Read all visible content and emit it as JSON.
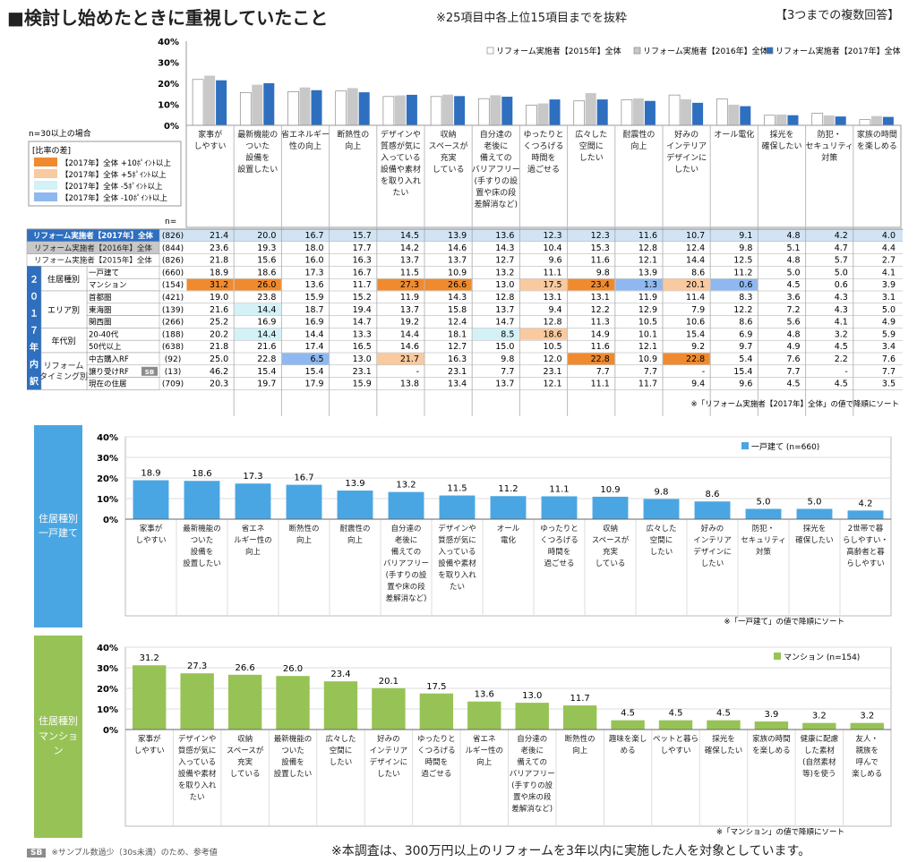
{
  "header": {
    "title": "■検討し始めたときに重視していたこと",
    "subtitle": "※25項目中各上位15項目までを抜粋",
    "answer_type": "【3つまでの複数回答】"
  },
  "colors": {
    "s2015": "#ffffff",
    "s2016": "#c8c8c8",
    "s2017": "#2e6fc0",
    "detached": "#4aa6e2",
    "mansion": "#97c356",
    "hl_plus10": "#ef8a2e",
    "hl_plus5": "#f9c9a0",
    "hl_minus5": "#d3f1f6",
    "hl_minus10": "#8fb8f0"
  },
  "note_n": "n=30以上の場合",
  "legend_box": {
    "title": "[比率の差]",
    "items": [
      {
        "label": "【2017年】全体 +10ﾎﾟｲﾝﾄ以上",
        "color": "#ef8a2e"
      },
      {
        "label": "【2017年】全体 +5ﾎﾟｲﾝﾄ以上",
        "color": "#f9c9a0"
      },
      {
        "label": "【2017年】全体 -5ﾎﾟｲﾝﾄ以上",
        "color": "#d3f1f6"
      },
      {
        "label": "【2017年】全体 -10ﾎﾟｲﾝﾄ以上",
        "color": "#8fb8f0"
      }
    ]
  },
  "table": {
    "n_header": "n=",
    "group_main": "２０１７年内訳",
    "rows": [
      {
        "group": "",
        "label": "リフォーム実施者【2017年】全体",
        "n": "(826)",
        "v": [
          "21.4",
          "20.0",
          "16.7",
          "15.7",
          "14.5",
          "13.9",
          "13.6",
          "12.3",
          "12.3",
          "11.6",
          "10.7",
          "9.1",
          "4.8",
          "4.2",
          "4.0"
        ],
        "hl": [
          "",
          "",
          "",
          "",
          "",
          "",
          "",
          "",
          "",
          "",
          "",
          "",
          "",
          "",
          ""
        ]
      },
      {
        "group": "",
        "label": "リフォーム実施者【2016年】全体",
        "n": "(844)",
        "v": [
          "23.6",
          "19.3",
          "18.0",
          "17.7",
          "14.2",
          "14.6",
          "14.3",
          "10.4",
          "15.3",
          "12.8",
          "12.4",
          "9.8",
          "5.1",
          "4.7",
          "4.4"
        ],
        "hl": [
          "",
          "",
          "",
          "",
          "",
          "",
          "",
          "",
          "",
          "",
          "",
          "",
          "",
          "",
          ""
        ]
      },
      {
        "group": "",
        "label": "リフォーム実施者【2015年】全体",
        "n": "(826)",
        "v": [
          "21.8",
          "15.6",
          "16.0",
          "16.3",
          "13.7",
          "13.7",
          "12.7",
          "9.6",
          "11.6",
          "12.1",
          "14.4",
          "12.5",
          "4.8",
          "5.7",
          "2.7"
        ],
        "hl": [
          "",
          "",
          "",
          "",
          "",
          "",
          "",
          "",
          "",
          "",
          "",
          "",
          "",
          "",
          ""
        ]
      },
      {
        "group": "住居種別",
        "label": "一戸建て",
        "n": "(660)",
        "v": [
          "18.9",
          "18.6",
          "17.3",
          "16.7",
          "11.5",
          "10.9",
          "13.2",
          "11.1",
          "9.8",
          "13.9",
          "8.6",
          "11.2",
          "5.0",
          "5.0",
          "4.1"
        ],
        "hl": [
          "",
          "",
          "",
          "",
          "",
          "",
          "",
          "",
          "",
          "",
          "",
          "",
          "",
          "",
          ""
        ]
      },
      {
        "group": "",
        "label": "マンション",
        "n": "(154)",
        "v": [
          "31.2",
          "26.0",
          "13.6",
          "11.7",
          "27.3",
          "26.6",
          "13.0",
          "17.5",
          "23.4",
          "1.3",
          "20.1",
          "0.6",
          "4.5",
          "0.6",
          "3.9"
        ],
        "hl": [
          "p10",
          "p10",
          "",
          "",
          "p10",
          "p10",
          "",
          "p5",
          "p10",
          "m10",
          "p5",
          "m10",
          "",
          "",
          ""
        ]
      },
      {
        "group": "エリア別",
        "label": "首都圏",
        "n": "(421)",
        "v": [
          "19.0",
          "23.8",
          "15.9",
          "15.2",
          "11.9",
          "14.3",
          "12.8",
          "13.1",
          "13.1",
          "11.9",
          "11.4",
          "8.3",
          "3.6",
          "4.3",
          "3.1"
        ],
        "hl": [
          "",
          "",
          "",
          "",
          "",
          "",
          "",
          "",
          "",
          "",
          "",
          "",
          "",
          "",
          ""
        ]
      },
      {
        "group": "",
        "label": "東海圏",
        "n": "(139)",
        "v": [
          "21.6",
          "14.4",
          "18.7",
          "19.4",
          "13.7",
          "15.8",
          "13.7",
          "9.4",
          "12.2",
          "12.9",
          "7.9",
          "12.2",
          "7.2",
          "4.3",
          "5.0"
        ],
        "hl": [
          "",
          "m5",
          "",
          "",
          "",
          "",
          "",
          "",
          "",
          "",
          "",
          "",
          "",
          "",
          ""
        ]
      },
      {
        "group": "",
        "label": "関西圏",
        "n": "(266)",
        "v": [
          "25.2",
          "16.9",
          "16.9",
          "14.7",
          "19.2",
          "12.4",
          "14.7",
          "12.8",
          "11.3",
          "10.5",
          "10.6",
          "8.6",
          "5.6",
          "4.1",
          "4.9"
        ],
        "hl": [
          "",
          "",
          "",
          "",
          "",
          "",
          "",
          "",
          "",
          "",
          "",
          "",
          "",
          "",
          ""
        ]
      },
      {
        "group": "年代別",
        "label": "20-40代",
        "n": "(188)",
        "v": [
          "20.2",
          "14.4",
          "14.4",
          "13.3",
          "14.4",
          "18.1",
          "8.5",
          "18.6",
          "14.9",
          "10.1",
          "15.4",
          "6.9",
          "4.8",
          "3.2",
          "5.9"
        ],
        "hl": [
          "",
          "m5",
          "",
          "",
          "",
          "",
          "m5",
          "p5",
          "",
          "",
          "",
          "",
          "",
          "",
          ""
        ]
      },
      {
        "group": "",
        "label": "50代以上",
        "n": "(638)",
        "v": [
          "21.8",
          "21.6",
          "17.4",
          "16.5",
          "14.6",
          "12.7",
          "15.0",
          "10.5",
          "11.6",
          "12.1",
          "9.2",
          "9.7",
          "4.9",
          "4.5",
          "3.4"
        ],
        "hl": [
          "",
          "",
          "",
          "",
          "",
          "",
          "",
          "",
          "",
          "",
          "",
          "",
          "",
          "",
          ""
        ]
      },
      {
        "group": "リフォームタイミング別",
        "label": "中古購入RF",
        "n": "(92)",
        "v": [
          "25.0",
          "22.8",
          "6.5",
          "13.0",
          "21.7",
          "16.3",
          "9.8",
          "12.0",
          "22.8",
          "10.9",
          "22.8",
          "5.4",
          "7.6",
          "2.2",
          "7.6"
        ],
        "hl": [
          "",
          "",
          "m10",
          "",
          "p5",
          "",
          "",
          "",
          "p10",
          "",
          "p10",
          "",
          "",
          "",
          ""
        ]
      },
      {
        "group": "",
        "label": "譲り受けRF",
        "sb": "SB",
        "n": "(13)",
        "v": [
          "46.2",
          "15.4",
          "15.4",
          "23.1",
          "-",
          "23.1",
          "7.7",
          "23.1",
          "7.7",
          "7.7",
          "-",
          "15.4",
          "7.7",
          "-",
          "7.7"
        ],
        "hl": [
          "",
          "",
          "",
          "",
          "",
          "",
          "",
          "",
          "",
          "",
          "",
          "",
          "",
          "",
          ""
        ]
      },
      {
        "group": "",
        "label": "現在の住居",
        "n": "(709)",
        "v": [
          "20.3",
          "19.7",
          "17.9",
          "15.9",
          "13.8",
          "13.4",
          "13.7",
          "12.1",
          "11.1",
          "11.7",
          "9.4",
          "9.6",
          "4.5",
          "4.5",
          "3.5"
        ],
        "hl": [
          "",
          "",
          "",
          "",
          "",
          "",
          "",
          "",
          "",
          "",
          "",
          "",
          "",
          "",
          ""
        ]
      }
    ],
    "sort_note": "※「リフォーム実施者【2017年】全体」の値で降順にソート"
  },
  "sb_footnote_badge": "SB",
  "sb_footnote": "※サンプル数過少（30s未満）のため、参考値",
  "footer_main": "※本調査は、300万円以上のリフォームを3年以内に実施した人を対象としています。",
  "chart_data": [
    {
      "type": "bar",
      "title": "",
      "yticks": [
        "0%",
        "10%",
        "20%",
        "30%",
        "40%"
      ],
      "ylim": [
        0,
        40
      ],
      "categories": [
        "家事が\nしやすい",
        "最新機能の\nついた\n設備を\n設置したい",
        "省エネルギー\n性の向上",
        "断熱性の\n向上",
        "デザインや\n質感が気に\n入っている\n設備や素材\nを取り入れ\nたい",
        "収納\nスペースが\n充実\nしている",
        "自分達の\n老後に\n備えての\nバリアフリー\n(手すりの設\n置や床の段\n差解消など)",
        "ゆったりと\nくつろげる\n時間を\n過ごせる",
        "広々した\n空間に\nしたい",
        "耐震性の\n向上",
        "好みの\nインテリア\nデザインに\nしたい",
        "オール電化",
        "採光を\n確保したい",
        "防犯・\nセキュリティ\n対策",
        "家族の時間\nを楽しめる"
      ],
      "series": [
        {
          "name": "リフォーム実施者【2015年】全体",
          "values": [
            21.8,
            15.6,
            16.0,
            16.3,
            13.7,
            13.7,
            12.7,
            9.6,
            11.6,
            12.1,
            14.4,
            12.5,
            4.8,
            5.7,
            2.7
          ]
        },
        {
          "name": "リフォーム実施者【2016年】全体",
          "values": [
            23.6,
            19.3,
            18.0,
            17.7,
            14.2,
            14.6,
            14.3,
            10.4,
            15.3,
            12.8,
            12.4,
            9.8,
            5.1,
            4.7,
            4.4
          ]
        },
        {
          "name": "リフォーム実施者【2017年】全体",
          "values": [
            21.4,
            20.0,
            16.7,
            15.7,
            14.5,
            13.9,
            13.6,
            12.3,
            12.3,
            11.6,
            10.7,
            9.1,
            4.8,
            4.2,
            4.0
          ]
        }
      ],
      "legend": "top-right"
    },
    {
      "type": "bar",
      "panel_label": "住居種別\n一戸建て",
      "yticks": [
        "0%",
        "10%",
        "20%",
        "30%",
        "40%"
      ],
      "ylim": [
        0,
        40
      ],
      "categories": [
        "家事が\nしやすい",
        "最新機能の\nついた\n設備を\n設置したい",
        "省エネ\nルギー性の\n向上",
        "断熱性の\n向上",
        "耐震性の\n向上",
        "自分達の\n老後に\n備えての\nバリアフリー\n(手すりの設\n置や床の段\n差解消など)",
        "デザインや\n質感が気に\n入っている\n設備や素材\nを取り入れ\nたい",
        "オール\n電化",
        "ゆったりと\nくつろげる\n時間を\n過ごせる",
        "収納\nスペースが\n充実\nしている",
        "広々した\n空間に\nしたい",
        "好みの\nインテリア\nデザインに\nしたい",
        "防犯・\nセキュリティ\n対策",
        "採光を\n確保したい",
        "2世帯で暮\nらしやすい・\n高齢者と暮\nらしやすい"
      ],
      "series": [
        {
          "name": "一戸建て (n=660)",
          "values": [
            18.9,
            18.6,
            17.3,
            16.7,
            13.9,
            13.2,
            11.5,
            11.2,
            11.1,
            10.9,
            9.8,
            8.6,
            5.0,
            5.0,
            4.2
          ]
        }
      ],
      "legend": "top-right",
      "note": "※「一戸建て」の値で降順にソート"
    },
    {
      "type": "bar",
      "panel_label": "住居種別\nマンション",
      "yticks": [
        "0%",
        "10%",
        "20%",
        "30%",
        "40%"
      ],
      "ylim": [
        0,
        40
      ],
      "categories": [
        "家事が\nしやすい",
        "デザインや\n質感が気に\n入っている\n設備や素材\nを取り入れ\nたい",
        "収納\nスペースが\n充実\nしている",
        "最新機能の\nついた\n設備を\n設置したい",
        "広々した\n空間に\nしたい",
        "好みの\nインテリア\nデザインに\nしたい",
        "ゆったりと\nくつろげる\n時間を\n過ごせる",
        "省エネ\nルギー性の\n向上",
        "自分達の\n老後に\n備えての\nバリアフリー\n(手すりの設\n置や床の段\n差解消など)",
        "断熱性の\n向上",
        "趣味を楽し\nめる",
        "ペットと暮ら\nしやすい",
        "採光を\n確保したい",
        "家族の時間\nを楽しめる",
        "健康に配慮\nした素材\n(自然素材\n等)を使う",
        "友人・\n親族を\n呼んで\n楽しめる"
      ],
      "series": [
        {
          "name": "マンション (n=154)",
          "values": [
            31.2,
            27.3,
            26.6,
            26.0,
            23.4,
            20.1,
            17.5,
            13.6,
            13.0,
            11.7,
            4.5,
            4.5,
            4.5,
            3.9,
            3.2,
            3.2
          ]
        }
      ],
      "legend": "top-right",
      "note": "※「マンション」の値で降順にソート"
    }
  ]
}
